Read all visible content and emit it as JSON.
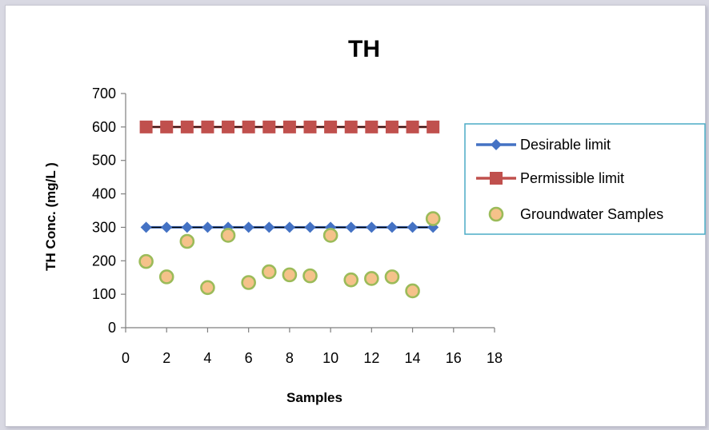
{
  "chart_data": {
    "type": "scatter",
    "title": "TH",
    "xlabel": "Samples",
    "ylabel": "TH Conc. (mg/L )",
    "xlim": [
      0,
      18
    ],
    "ylim": [
      0,
      700
    ],
    "xticks": [
      0,
      2,
      4,
      6,
      8,
      10,
      12,
      14,
      16,
      18
    ],
    "yticks": [
      0,
      100,
      200,
      300,
      400,
      500,
      600,
      700
    ],
    "grid": false,
    "legend_position": "right",
    "series": [
      {
        "name": "Desirable limit",
        "kind": "line-marker",
        "marker": "diamond",
        "color": "#4472c4",
        "x": [
          1,
          2,
          3,
          4,
          5,
          6,
          7,
          8,
          9,
          10,
          11,
          12,
          13,
          14,
          15
        ],
        "y": [
          300,
          300,
          300,
          300,
          300,
          300,
          300,
          300,
          300,
          300,
          300,
          300,
          300,
          300,
          300
        ]
      },
      {
        "name": "Permissible limit",
        "kind": "line-marker",
        "marker": "square",
        "color": "#c0504d",
        "x": [
          1,
          2,
          3,
          4,
          5,
          6,
          7,
          8,
          9,
          10,
          11,
          12,
          13,
          14,
          15
        ],
        "y": [
          600,
          600,
          600,
          600,
          600,
          600,
          600,
          600,
          600,
          600,
          600,
          600,
          600,
          600,
          600
        ]
      },
      {
        "name": "Groundwater Samples",
        "kind": "scatter",
        "marker": "circle",
        "color": "#f5c28a",
        "edge_color": "#9bbb59",
        "x": [
          1,
          2,
          3,
          4,
          5,
          6,
          7,
          8,
          9,
          10,
          11,
          12,
          13,
          14,
          15
        ],
        "y": [
          198,
          152,
          258,
          120,
          276,
          135,
          167,
          158,
          155,
          276,
          143,
          147,
          152,
          110,
          326
        ]
      }
    ]
  }
}
